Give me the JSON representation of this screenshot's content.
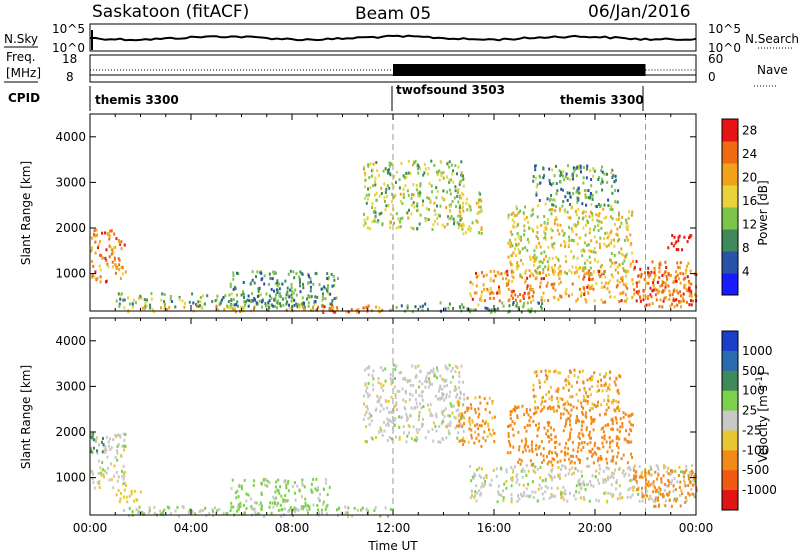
{
  "header": {
    "station": "Saskatoon (fitACF)",
    "beam": "Beam 05",
    "date": "06/Jan/2016"
  },
  "noise_panel": {
    "left_label": "N.Sky",
    "right_label": "N.Search",
    "left_ticks": [
      "10^5",
      "10^0"
    ],
    "right_ticks": [
      "10^5",
      "10^0"
    ]
  },
  "freq_panel": {
    "left_label_line1": "Freq.",
    "left_label_line2": "[MHz]",
    "right_label": "Nave",
    "left_ticks": [
      "18",
      "8"
    ],
    "right_ticks": [
      "60",
      "0"
    ]
  },
  "cpid_panel": {
    "label": "CPID",
    "modes": [
      {
        "name": "themis 3300",
        "start_hour": 0,
        "end_hour": 12
      },
      {
        "name": "twofsound 3503",
        "start_hour": 12,
        "end_hour": 22
      },
      {
        "name": "themis 3300",
        "start_hour": 22,
        "end_hour": 24
      }
    ]
  },
  "colors": {
    "power": [
      "#1a1aff",
      "#2a52a8",
      "#3f8a5a",
      "#7cc44a",
      "#e8d43a",
      "#f2a31a",
      "#f06a14",
      "#e81414"
    ],
    "velocity": [
      "#1a3fc8",
      "#2a6ab0",
      "#3f8a5a",
      "#7cd14a",
      "#c8c8c8",
      "#e8c832",
      "#f28a1a",
      "#f05a14",
      "#e01414"
    ]
  },
  "chart_data": [
    {
      "type": "heatmap",
      "title": "Power",
      "ylabel": "Slant Range [km]",
      "xlabel": "",
      "xlim": [
        0,
        24
      ],
      "ylim": [
        180,
        4500
      ],
      "yticks": [
        "1000",
        "2000",
        "3000",
        "4000"
      ],
      "xticks": [],
      "colorbar": {
        "label": "Power [dB]",
        "ticks": [
          "4",
          "8",
          "12",
          "16",
          "20",
          "24",
          "28"
        ],
        "range": [
          0,
          30
        ]
      },
      "mode_change_hours": [
        12,
        22
      ],
      "regions": [
        {
          "t0": 0.0,
          "t1": 1.4,
          "r0": 800,
          "r1": 2000,
          "value": 22
        },
        {
          "t0": 1.0,
          "t1": 9.5,
          "r0": 280,
          "r1": 600,
          "value": 12
        },
        {
          "t0": 5.5,
          "t1": 9.8,
          "r0": 300,
          "r1": 1100,
          "value": 10
        },
        {
          "t0": 1.3,
          "t1": 12.0,
          "r0": 180,
          "r1": 320,
          "value": 20
        },
        {
          "t0": 9.0,
          "t1": 10.8,
          "r0": 180,
          "r1": 330,
          "value": 26
        },
        {
          "t0": 10.8,
          "t1": 14.8,
          "r0": 2000,
          "r1": 3500,
          "value": 14
        },
        {
          "t0": 12.0,
          "t1": 18.0,
          "r0": 180,
          "r1": 400,
          "value": 10
        },
        {
          "t0": 14.5,
          "t1": 15.5,
          "r0": 1900,
          "r1": 2800,
          "value": 16
        },
        {
          "t0": 15.0,
          "t1": 24.0,
          "r0": 400,
          "r1": 1100,
          "value": 22
        },
        {
          "t0": 16.5,
          "t1": 21.5,
          "r0": 1000,
          "r1": 2500,
          "value": 17
        },
        {
          "t0": 17.5,
          "t1": 21.0,
          "r0": 2500,
          "r1": 3400,
          "value": 11
        },
        {
          "t0": 21.5,
          "t1": 23.8,
          "r0": 300,
          "r1": 1300,
          "value": 25
        },
        {
          "t0": 22.8,
          "t1": 23.8,
          "r0": 1500,
          "r1": 1900,
          "value": 29
        }
      ]
    },
    {
      "type": "heatmap",
      "title": "Velocity",
      "ylabel": "Slant Range [km]",
      "xlabel": "Time UT",
      "xlim": [
        0,
        24
      ],
      "ylim": [
        180,
        4500
      ],
      "yticks": [
        "1000",
        "2000",
        "3000",
        "4000"
      ],
      "xticks": [
        "00:00",
        "04:00",
        "08:00",
        "12:00",
        "16:00",
        "20:00",
        "00:00"
      ],
      "colorbar": {
        "label": "Velocity [m s^-1]",
        "ticks": [
          "1000",
          "500",
          "100",
          "25",
          "-25",
          "-100",
          "-500",
          "-1000"
        ],
        "range": [
          -1000,
          1000
        ]
      },
      "mode_change_hours": [
        12,
        22
      ],
      "regions": [
        {
          "t0": 0.0,
          "t1": 1.4,
          "r0": 800,
          "r1": 2000,
          "value": 0
        },
        {
          "t0": 0.0,
          "t1": 0.5,
          "r0": 1500,
          "r1": 2000,
          "value": 120
        },
        {
          "t0": 1.0,
          "t1": 2.2,
          "r0": 500,
          "r1": 800,
          "value": -60
        },
        {
          "t0": 5.5,
          "t1": 9.5,
          "r0": 300,
          "r1": 1000,
          "value": 40
        },
        {
          "t0": 1.3,
          "t1": 12.0,
          "r0": 180,
          "r1": 400,
          "value": 30
        },
        {
          "t0": 10.8,
          "t1": 14.8,
          "r0": 1800,
          "r1": 3500,
          "value": 0
        },
        {
          "t0": 14.5,
          "t1": 16.0,
          "r0": 1700,
          "r1": 2800,
          "value": -120
        },
        {
          "t0": 15.0,
          "t1": 24.0,
          "r0": 500,
          "r1": 1300,
          "value": 0
        },
        {
          "t0": 16.5,
          "t1": 21.5,
          "r0": 1300,
          "r1": 2600,
          "value": -200
        },
        {
          "t0": 21.5,
          "t1": 24.0,
          "r0": 400,
          "r1": 1200,
          "value": -150
        },
        {
          "t0": 17.5,
          "t1": 21.0,
          "r0": 2500,
          "r1": 3400,
          "value": -100
        }
      ]
    }
  ]
}
